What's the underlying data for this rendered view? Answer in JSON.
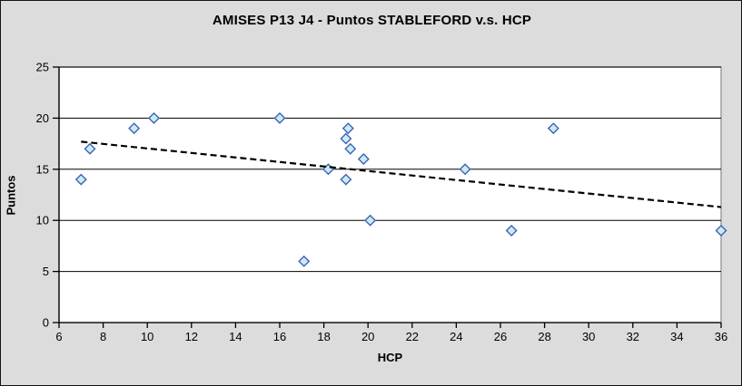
{
  "window": {
    "background_color": "#dcdcdc",
    "border_color": "#141414"
  },
  "chart_data": {
    "type": "scatter",
    "title": "AMISES P13 J4 - Puntos STABLEFORD v.s. HCP",
    "xlabel": "HCP",
    "ylabel": "Puntos",
    "xlim": [
      6,
      36
    ],
    "ylim": [
      0,
      25
    ],
    "x_ticks": [
      6,
      8,
      10,
      12,
      14,
      16,
      18,
      20,
      22,
      24,
      26,
      28,
      30,
      32,
      34,
      36
    ],
    "y_ticks": [
      0,
      5,
      10,
      15,
      20,
      25
    ],
    "grid": "horizontal-only",
    "legend": "none",
    "series": [
      {
        "name": "Puntos STABLEFORD",
        "marker": "diamond",
        "marker_fill": "#c9eaf8",
        "marker_stroke": "#3f63ae",
        "points": [
          [
            7.0,
            14
          ],
          [
            7.4,
            17
          ],
          [
            9.4,
            19
          ],
          [
            10.3,
            20
          ],
          [
            16.0,
            20
          ],
          [
            17.1,
            6
          ],
          [
            18.2,
            15
          ],
          [
            19.0,
            14
          ],
          [
            19.0,
            18
          ],
          [
            19.1,
            19
          ],
          [
            19.2,
            17
          ],
          [
            19.8,
            16
          ],
          [
            20.1,
            10
          ],
          [
            24.4,
            15
          ],
          [
            26.5,
            9
          ],
          [
            28.4,
            19
          ],
          [
            36.0,
            9
          ]
        ]
      }
    ],
    "trendline": {
      "x_start": 7.0,
      "y_start": 17.7,
      "x_end": 36.0,
      "y_end": 11.3,
      "color": "#000000",
      "style": "dashed"
    },
    "colors": {
      "plot_background": "#ffffff",
      "plot_border": "#9e9e9e",
      "axis": "#000000",
      "gridline": "#000000"
    }
  }
}
